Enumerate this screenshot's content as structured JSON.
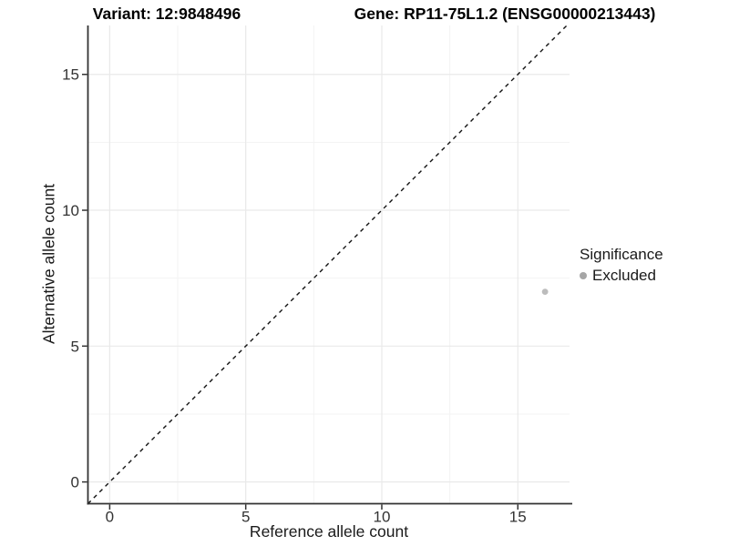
{
  "chart_data": {
    "type": "scatter",
    "titles": {
      "variant": "Variant: 12:9848496",
      "gene": "Gene: RP11-75L1.2 (ENSG00000213443)"
    },
    "xlabel": "Reference allele count",
    "ylabel": "Alternative allele count",
    "xlim": [
      -0.8,
      16.9
    ],
    "ylim": [
      -0.8,
      16.8
    ],
    "x_ticks": [
      0,
      5,
      10,
      15
    ],
    "y_ticks": [
      0,
      5,
      10,
      15
    ],
    "minor_gridlines": [
      2.5,
      7.5,
      12.5
    ],
    "grid": "major+minor",
    "identity_line": {
      "slope": 1,
      "intercept": 0,
      "style": "dashed",
      "color": "#111111"
    },
    "series": [
      {
        "name": "Excluded",
        "color": "#bcbcbc",
        "point_radius": 3.4,
        "points": [
          {
            "x": 16,
            "y": 7
          }
        ]
      }
    ],
    "legend": {
      "title": "Significance",
      "position": "right",
      "entries": [
        {
          "label": "Excluded",
          "color": "#a6a6a6"
        }
      ]
    },
    "colors": {
      "background": "#ffffff",
      "axis": "#333333",
      "tick_label": "#333333",
      "grid_major": "#e9e9e9",
      "grid_minor": "#f3f3f3"
    }
  }
}
